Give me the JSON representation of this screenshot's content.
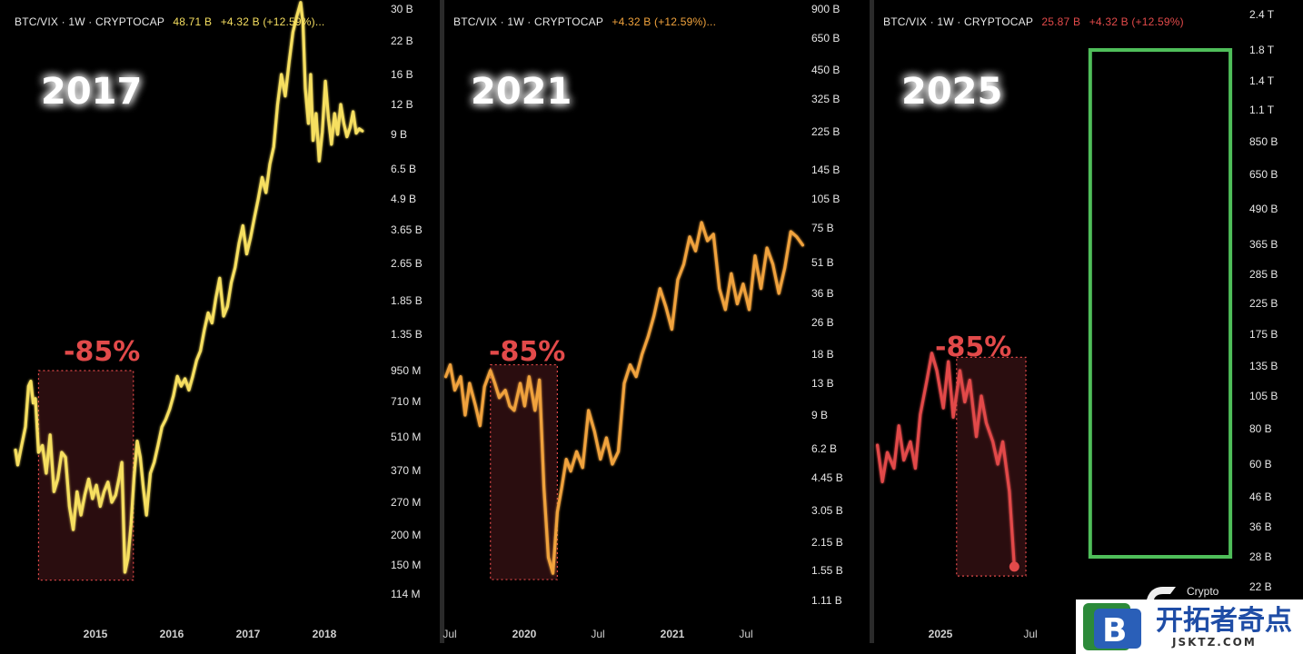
{
  "colors": {
    "background": "#000000",
    "panel1": "#f6df60",
    "panel2": "#f0a23c",
    "panel3": "#e24a4a",
    "drawdown_fill": "#2a0d0f",
    "drawdown_border": "#e24a4a",
    "target_box": "#4fbe5a",
    "divider": "#2a2a2a"
  },
  "watermark": {
    "brand_cn": "开拓者奇点",
    "url": "JSKTZ.COM",
    "crypto_label": "Crypto"
  },
  "chart_data": [
    {
      "type": "line",
      "header": {
        "symbol": "BTC/VIX · 1W · CRYPTOCAP",
        "value": "48.71 B",
        "change": "+4.32 B (+12.59%)..."
      },
      "year_label": "2017",
      "drawdown_label": "-85%",
      "y_scale": "log",
      "y_ticks": [
        "30 B",
        "22 B",
        "16 B",
        "12 B",
        "9 B",
        "6.5 B",
        "4.9 B",
        "3.65 B",
        "2.65 B",
        "1.85 B",
        "1.35 B",
        "950 M",
        "710 M",
        "510 M",
        "370 M",
        "270 M",
        "200 M",
        "150 M",
        "114 M"
      ],
      "x_ticks": [
        "2015",
        "2016",
        "2017",
        "2018"
      ],
      "series": [
        {
          "x": [
            2014.2,
            2014.23,
            2014.28,
            2014.33,
            2014.37,
            2014.4,
            2014.43,
            2014.46,
            2014.5,
            2014.55,
            2014.6,
            2014.65,
            2014.7,
            2014.75,
            2014.8,
            2014.85,
            2014.9,
            2014.95,
            2015.0,
            2015.05,
            2015.1,
            2015.15,
            2015.2,
            2015.25,
            2015.3,
            2015.35,
            2015.4,
            2015.45,
            2015.5,
            2015.55,
            2015.58,
            2015.62,
            2015.66,
            2015.7,
            2015.74,
            2015.78,
            2015.82,
            2015.86,
            2015.9,
            2015.95,
            2016.0,
            2016.05,
            2016.1,
            2016.15,
            2016.2,
            2016.25,
            2016.3,
            2016.35,
            2016.4,
            2016.45,
            2016.5,
            2016.55,
            2016.6,
            2016.65,
            2016.7,
            2016.75,
            2016.8,
            2016.85,
            2016.9,
            2016.95,
            2017.0,
            2017.05,
            2017.1,
            2017.15,
            2017.2,
            2017.25,
            2017.3,
            2017.35,
            2017.4,
            2017.45,
            2017.5,
            2017.55,
            2017.6,
            2017.65,
            2017.7,
            2017.75,
            2017.8,
            2017.85,
            2017.9,
            2017.93,
            2017.96,
            2018.0,
            2018.03,
            2018.06,
            2018.1,
            2018.14,
            2018.18,
            2018.22,
            2018.26,
            2018.3,
            2018.34,
            2018.38,
            2018.42,
            2018.46,
            2018.5,
            2018.54,
            2018.58,
            2018.62,
            2018.66,
            2018.7
          ],
          "y": [
            0.45,
            0.39,
            0.47,
            0.56,
            0.82,
            0.86,
            0.7,
            0.73,
            0.44,
            0.47,
            0.36,
            0.52,
            0.3,
            0.34,
            0.44,
            0.42,
            0.26,
            0.21,
            0.3,
            0.24,
            0.29,
            0.34,
            0.28,
            0.32,
            0.26,
            0.3,
            0.33,
            0.27,
            0.29,
            0.35,
            0.4,
            0.14,
            0.16,
            0.22,
            0.35,
            0.49,
            0.42,
            0.31,
            0.24,
            0.36,
            0.4,
            0.47,
            0.56,
            0.6,
            0.66,
            0.75,
            0.9,
            0.82,
            0.88,
            0.79,
            0.9,
            1.05,
            1.15,
            1.4,
            1.65,
            1.5,
            1.9,
            2.3,
            1.6,
            1.75,
            2.2,
            2.55,
            3.2,
            3.8,
            2.9,
            3.4,
            4.1,
            4.9,
            6.0,
            5.2,
            6.8,
            8.0,
            12.0,
            16.0,
            13.0,
            18.0,
            24.0,
            28.0,
            32.0,
            26.0,
            14.0,
            10.0,
            16.0,
            8.5,
            11.0,
            7.0,
            9.2,
            15.0,
            10.5,
            8.2,
            11.0,
            9.0,
            12.0,
            10.0,
            8.8,
            9.6,
            11.2,
            9.1,
            9.5,
            9.3
          ]
        }
      ],
      "drawdown_box": {
        "x0": 2014.5,
        "x1": 2015.73,
        "y0": 0.13,
        "y1": 0.95
      }
    },
    {
      "type": "line",
      "header": {
        "symbol": "BTC/VIX · 1W · CRYPTOCAP",
        "value": "",
        "change": "+4.32 B (+12.59%)..."
      },
      "year_label": "2021",
      "drawdown_label": "-85%",
      "y_scale": "log",
      "y_ticks": [
        "900 B",
        "650 B",
        "450 B",
        "325 B",
        "225 B",
        "145 B",
        "105 B",
        "75 B",
        "51 B",
        "36 B",
        "26 B",
        "18 B",
        "13 B",
        "9 B",
        "6.2 B",
        "4.45 B",
        "3.05 B",
        "2.15 B",
        "1.55 B",
        "1.11 B"
      ],
      "x_ticks": [
        "Jul",
        "2020",
        "Jul",
        "2021",
        "Jul"
      ],
      "series": [
        {
          "x": [
            2019.5,
            2019.53,
            2019.56,
            2019.6,
            2019.63,
            2019.66,
            2019.7,
            2019.73,
            2019.76,
            2019.8,
            2019.83,
            2019.86,
            2019.9,
            2019.93,
            2019.96,
            2020.0,
            2020.03,
            2020.06,
            2020.1,
            2020.13,
            2020.16,
            2020.19,
            2020.22,
            2020.25,
            2020.28,
            2020.31,
            2020.34,
            2020.38,
            2020.42,
            2020.46,
            2020.5,
            2020.54,
            2020.58,
            2020.62,
            2020.66,
            2020.7,
            2020.74,
            2020.78,
            2020.82,
            2020.86,
            2020.9,
            2020.94,
            2020.98,
            2021.02,
            2021.06,
            2021.1,
            2021.14,
            2021.18,
            2021.22,
            2021.26,
            2021.3,
            2021.34,
            2021.38,
            2021.42,
            2021.46,
            2021.5,
            2021.54,
            2021.58,
            2021.62,
            2021.66,
            2021.7,
            2021.74,
            2021.78,
            2021.82,
            2021.86,
            2021.9
          ],
          "y": [
            14.0,
            16.0,
            12.0,
            14.0,
            9.0,
            13.0,
            10.0,
            8.0,
            12.5,
            15.0,
            13.0,
            11.0,
            12.0,
            10.0,
            9.5,
            13.0,
            10.0,
            14.0,
            9.5,
            13.5,
            4.0,
            1.8,
            1.5,
            3.0,
            4.0,
            5.5,
            4.8,
            6.0,
            5.0,
            9.5,
            7.5,
            5.5,
            7.0,
            5.2,
            6.0,
            13.0,
            16.0,
            14.0,
            18.0,
            22.0,
            28.0,
            38.0,
            31.0,
            24.0,
            42.0,
            50.0,
            68.0,
            58.0,
            80.0,
            65.0,
            70.0,
            38.0,
            30.0,
            45.0,
            32.0,
            40.0,
            30.0,
            55.0,
            38.0,
            60.0,
            50.0,
            36.0,
            48.0,
            72.0,
            68.0,
            62.0
          ]
        }
      ],
      "drawdown_box": {
        "x0": 2019.8,
        "x1": 2020.25,
        "y0": 1.4,
        "y1": 16.0
      }
    },
    {
      "type": "line",
      "header": {
        "symbol": "BTC/VIX · 1W · CRYPTOCAP",
        "value": "25.87 B",
        "change": "+4.32 B (+12.59%)"
      },
      "year_label": "2025",
      "drawdown_label": "-85%",
      "y_scale": "log",
      "y_ticks": [
        "2.4 T",
        "1.8 T",
        "1.4 T",
        "1.1 T",
        "850 B",
        "650 B",
        "490 B",
        "365 B",
        "285 B",
        "225 B",
        "175 B",
        "135 B",
        "105 B",
        "80 B",
        "60 B",
        "46 B",
        "36 B",
        "28 B",
        "22 B"
      ],
      "x_ticks": [
        "2025",
        "Jul"
      ],
      "series": [
        {
          "x": [
            2024.5,
            2024.53,
            2024.56,
            2024.6,
            2024.63,
            2024.66,
            2024.7,
            2024.73,
            2024.76,
            2024.8,
            2024.83,
            2024.86,
            2024.9,
            2024.93,
            2024.96,
            2025.0,
            2025.03,
            2025.06,
            2025.1,
            2025.13,
            2025.16,
            2025.2,
            2025.23,
            2025.26,
            2025.3,
            2025.33
          ],
          "y": [
            70.0,
            52.0,
            66.0,
            58.0,
            82.0,
            62.0,
            72.0,
            58.0,
            90.0,
            120.0,
            150.0,
            130.0,
            95.0,
            140.0,
            88.0,
            130.0,
            100.0,
            120.0,
            75.0,
            105.0,
            84.0,
            72.0,
            60.0,
            72.0,
            48.0,
            25.87
          ]
        }
      ],
      "drawdown_box": {
        "x0": 2024.98,
        "x1": 2025.4,
        "y0": 24.0,
        "y1": 145.0
      },
      "target_box": {
        "x0": 2025.79,
        "x1": 2026.64,
        "y0": 28.0,
        "y1": 1800.0
      }
    }
  ]
}
